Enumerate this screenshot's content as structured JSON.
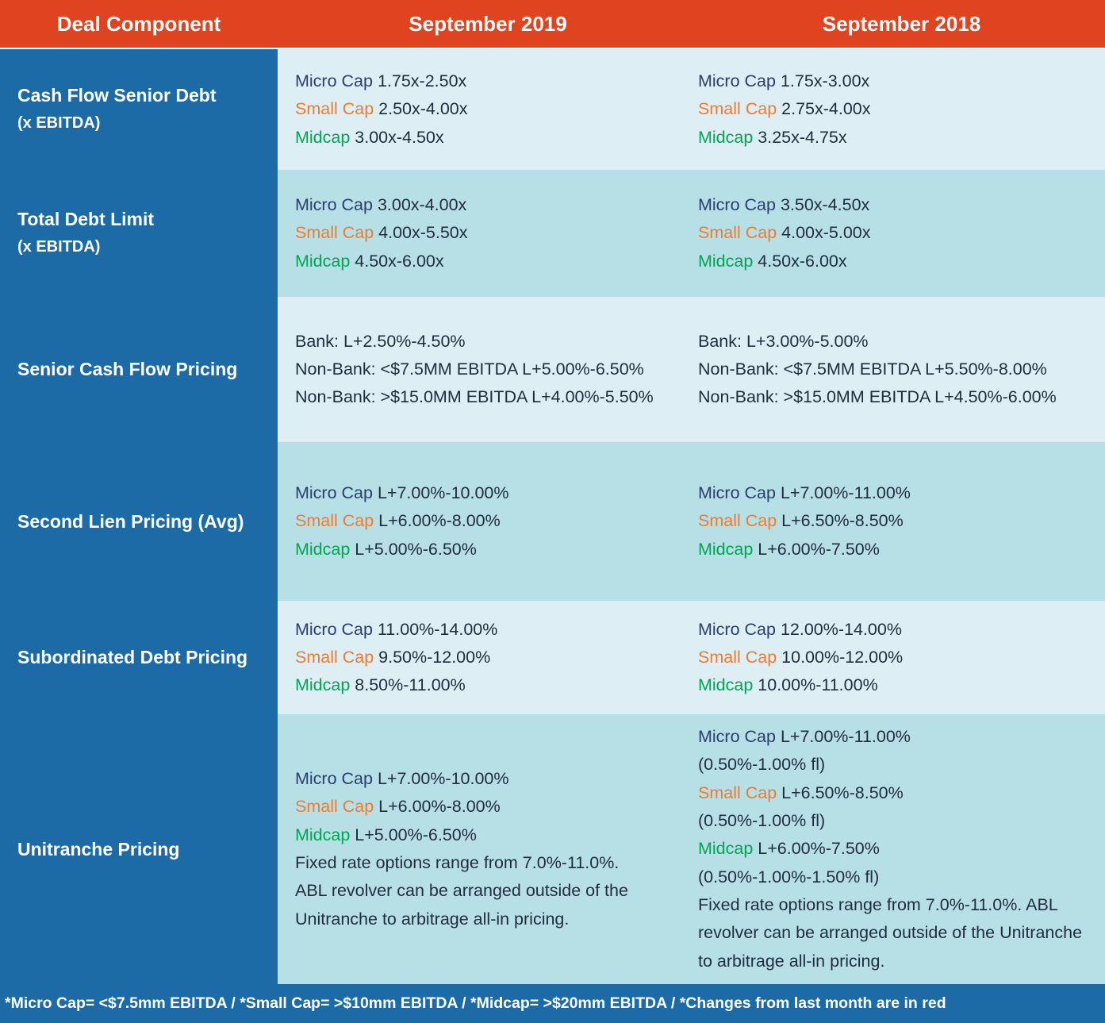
{
  "header": {
    "col_component": "Deal Component",
    "col_2019": "September 2019",
    "col_2018": "September 2018"
  },
  "rows": [
    {
      "label": [
        "Cash Flow Senior Debt",
        "(x EBITDA)"
      ],
      "y2019": [
        {
          "tier": "Micro Cap",
          "value": " 1.75x-2.50x"
        },
        {
          "tier": "Small Cap",
          "value": " 2.50x-4.00x"
        },
        {
          "tier": "Midcap",
          "value": " 3.00x-4.50x"
        }
      ],
      "y2018": [
        {
          "tier": "Micro Cap",
          "value": " 1.75x-3.00x"
        },
        {
          "tier": "Small Cap",
          "value": " 2.75x-4.00x"
        },
        {
          "tier": "Midcap",
          "value": " 3.25x-4.75x"
        }
      ]
    },
    {
      "label": [
        "Total Debt Limit",
        "(x EBITDA)"
      ],
      "y2019": [
        {
          "tier": "Micro Cap",
          "value": " 3.00x-4.00x"
        },
        {
          "tier": "Small Cap",
          "value": " 4.00x-5.50x"
        },
        {
          "tier": "Midcap",
          "value": " 4.50x-6.00x"
        }
      ],
      "y2018": [
        {
          "tier": "Micro Cap",
          "value": " 3.50x-4.50x"
        },
        {
          "tier": "Small Cap",
          "value": " 4.00x-5.00x"
        },
        {
          "tier": "Midcap",
          "value": " 4.50x-6.00x"
        }
      ]
    },
    {
      "label": [
        "Senior Cash Flow Pricing"
      ],
      "y2019": [
        {
          "tier": "",
          "value": "Bank: L+2.50%-4.50%"
        },
        {
          "tier": "",
          "value": "Non-Bank: <$7.5MM EBITDA L+5.00%-6.50%"
        },
        {
          "tier": "",
          "value": "Non-Bank: >$15.0MM EBITDA L+4.00%-5.50%"
        }
      ],
      "y2018": [
        {
          "tier": "",
          "value": "Bank: L+3.00%-5.00%"
        },
        {
          "tier": "",
          "value": "Non-Bank: <$7.5MM EBITDA L+5.50%-8.00%"
        },
        {
          "tier": "",
          "value": "Non-Bank: >$15.0MM EBITDA L+4.50%-6.00%"
        }
      ]
    },
    {
      "label": [
        "Second Lien Pricing (Avg)"
      ],
      "y2019": [
        {
          "tier": "Micro Cap",
          "value": " L+7.00%-10.00%"
        },
        {
          "tier": "Small Cap",
          "value": " L+6.00%-8.00%"
        },
        {
          "tier": "Midcap",
          "value": " L+5.00%-6.50%"
        }
      ],
      "y2018": [
        {
          "tier": "Micro Cap",
          "value": " L+7.00%-11.00%"
        },
        {
          "tier": "Small Cap",
          "value": " L+6.50%-8.50%"
        },
        {
          "tier": "Midcap",
          "value": " L+6.00%-7.50%"
        }
      ]
    },
    {
      "label": [
        "Subordinated Debt Pricing"
      ],
      "y2019": [
        {
          "tier": "Micro Cap",
          "value": " 11.00%-14.00%"
        },
        {
          "tier": "Small Cap",
          "value": " 9.50%-12.00%"
        },
        {
          "tier": "Midcap",
          "value": " 8.50%-11.00%"
        }
      ],
      "y2018": [
        {
          "tier": "Micro Cap",
          "value": " 12.00%-14.00%"
        },
        {
          "tier": "Small Cap",
          "value": " 10.00%-12.00%"
        },
        {
          "tier": "Midcap",
          "value": " 10.00%-11.00%"
        }
      ]
    },
    {
      "label": [
        "Unitranche Pricing"
      ],
      "y2019": [
        {
          "tier": "Micro Cap",
          "value": " L+7.00%-10.00%"
        },
        {
          "tier": "Small Cap",
          "value": " L+6.00%-8.00%"
        },
        {
          "tier": "Midcap",
          "value": " L+5.00%-6.50%"
        },
        {
          "tier": "",
          "value": "Fixed rate options range from 7.0%-11.0%."
        },
        {
          "tier": "",
          "value": "ABL revolver can be arranged outside of the"
        },
        {
          "tier": "",
          "value": "Unitranche to arbitrage all-in pricing."
        }
      ],
      "y2018": [
        {
          "tier": "Micro Cap",
          "value": " L+7.00%-11.00%"
        },
        {
          "tier": "",
          "value": "(0.50%-1.00% fl)"
        },
        {
          "tier": "Small Cap",
          "value": " L+6.50%-8.50%"
        },
        {
          "tier": "",
          "value": "(0.50%-1.00% fl)"
        },
        {
          "tier": "Midcap",
          "value": " L+6.00%-7.50%"
        },
        {
          "tier": "",
          "value": "(0.50%-1.00%-1.50% fl)"
        },
        {
          "tier": "",
          "value": "Fixed rate options range from 7.0%-11.0%. ABL"
        },
        {
          "tier": "",
          "value": "revolver can be arranged outside of the Unitranche"
        },
        {
          "tier": "",
          "value": "to arbitrage all-in pricing."
        }
      ]
    }
  ],
  "footer": "*Micro Cap= <$7.5mm EBITDA / *Small Cap= >$10mm EBITDA / *Midcap= >$20mm EBITDA / *Changes from last month are in red",
  "colors": {
    "header_bg": "#e0431f",
    "sidebar_bg": "#1c6aa6",
    "row_light": "#ddeef4",
    "row_dark": "#b7dfe6",
    "micro_cap": "#2a3f6e",
    "small_cap": "#ee7b30",
    "midcap": "#00a651"
  }
}
